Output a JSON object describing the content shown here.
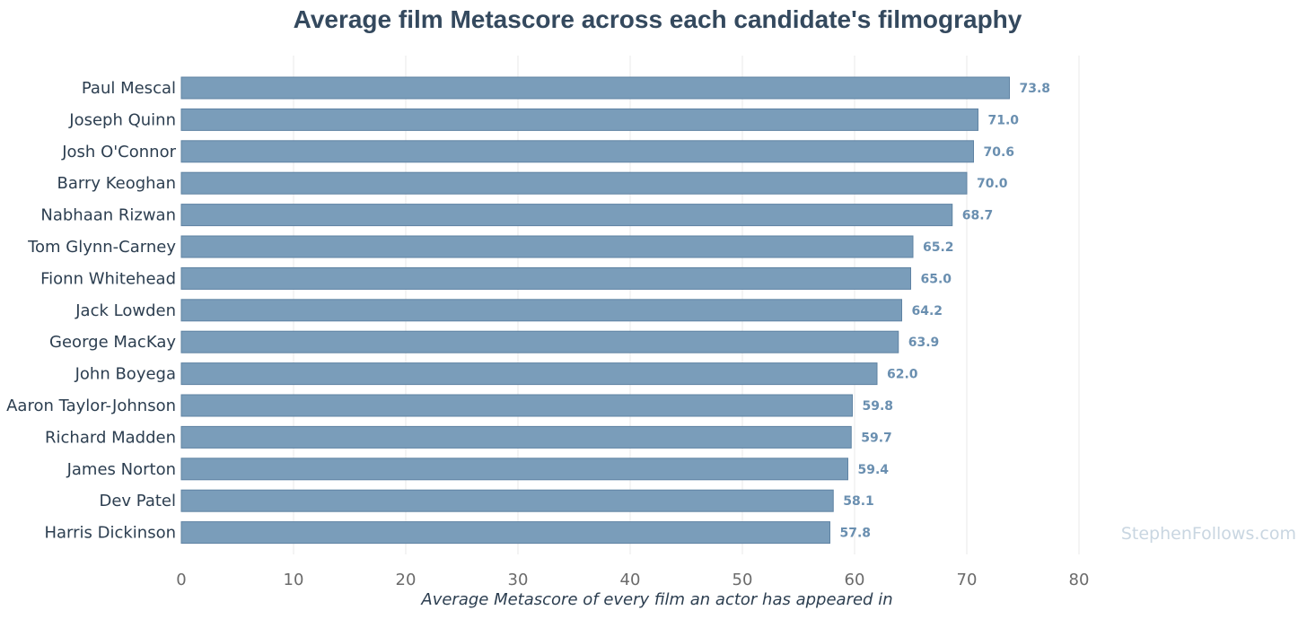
{
  "chart_data": {
    "type": "bar",
    "orientation": "horizontal",
    "title": "Average film Metascore across each candidate's filmography",
    "xlabel": "Average Metascore of every film an actor has appeared in",
    "ylabel": "",
    "xlim": [
      0,
      80
    ],
    "x_ticks": [
      0,
      10,
      20,
      30,
      40,
      50,
      60,
      70,
      80
    ],
    "grid": "vertical",
    "categories": [
      "Paul Mescal",
      "Joseph Quinn",
      "Josh O'Connor",
      "Barry Keoghan",
      "Nabhaan Rizwan",
      "Tom Glynn-Carney",
      "Fionn Whitehead",
      "Jack Lowden",
      "George MacKay",
      "John Boyega",
      "Aaron Taylor-Johnson",
      "Richard Madden",
      "James Norton",
      "Dev Patel",
      "Harris Dickinson"
    ],
    "values": [
      73.8,
      71.0,
      70.6,
      70.0,
      68.7,
      65.2,
      65.0,
      64.2,
      63.9,
      62.0,
      59.8,
      59.7,
      59.4,
      58.1,
      57.8
    ],
    "data_labels": [
      "73.8",
      "71.0",
      "70.6",
      "70.0",
      "68.7",
      "65.2",
      "65.0",
      "64.2",
      "63.9",
      "62.0",
      "59.8",
      "59.7",
      "59.4",
      "58.1",
      "57.8"
    ],
    "bar_color": "#7a9dba",
    "bar_edge_color": "#5f83a3",
    "label_color": "#6a8fb0",
    "watermark": "StephenFollows.com"
  }
}
